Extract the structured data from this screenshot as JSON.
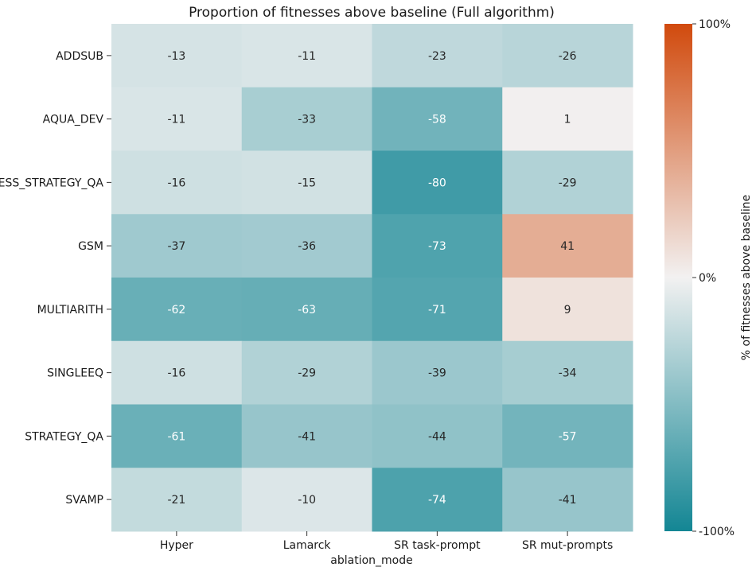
{
  "chart_data": {
    "type": "heatmap",
    "title": "Proportion of fitnesses above baseline (Full algorithm)",
    "xlabel": "ablation_mode",
    "ylabel": "",
    "x_categories": [
      "Hyper",
      "Lamarck",
      "SR task-prompt",
      "SR mut-prompts"
    ],
    "y_categories": [
      "ADDSUB",
      "AQUA_DEV",
      "ESS_STRATEGY_QA",
      "GSM",
      "MULTIARITH",
      "SINGLEEQ",
      "STRATEGY_QA",
      "SVAMP"
    ],
    "values": [
      [
        -13,
        -11,
        -23,
        -26
      ],
      [
        -11,
        -33,
        -58,
        1
      ],
      [
        -16,
        -15,
        -80,
        -29
      ],
      [
        -37,
        -36,
        -73,
        41
      ],
      [
        -62,
        -63,
        -71,
        9
      ],
      [
        -16,
        -29,
        -39,
        -34
      ],
      [
        -61,
        -41,
        -44,
        -57
      ],
      [
        -21,
        -10,
        -74,
        -41
      ]
    ],
    "colorbar": {
      "label": "% of fitnesses above baseline",
      "ticks": [
        "100%",
        "0%",
        "-100%"
      ],
      "vmin": -100,
      "vmax": 100,
      "negative_color": "#138694",
      "center_color": "#f2f1f1",
      "positive_color": "#d14a0d"
    }
  }
}
